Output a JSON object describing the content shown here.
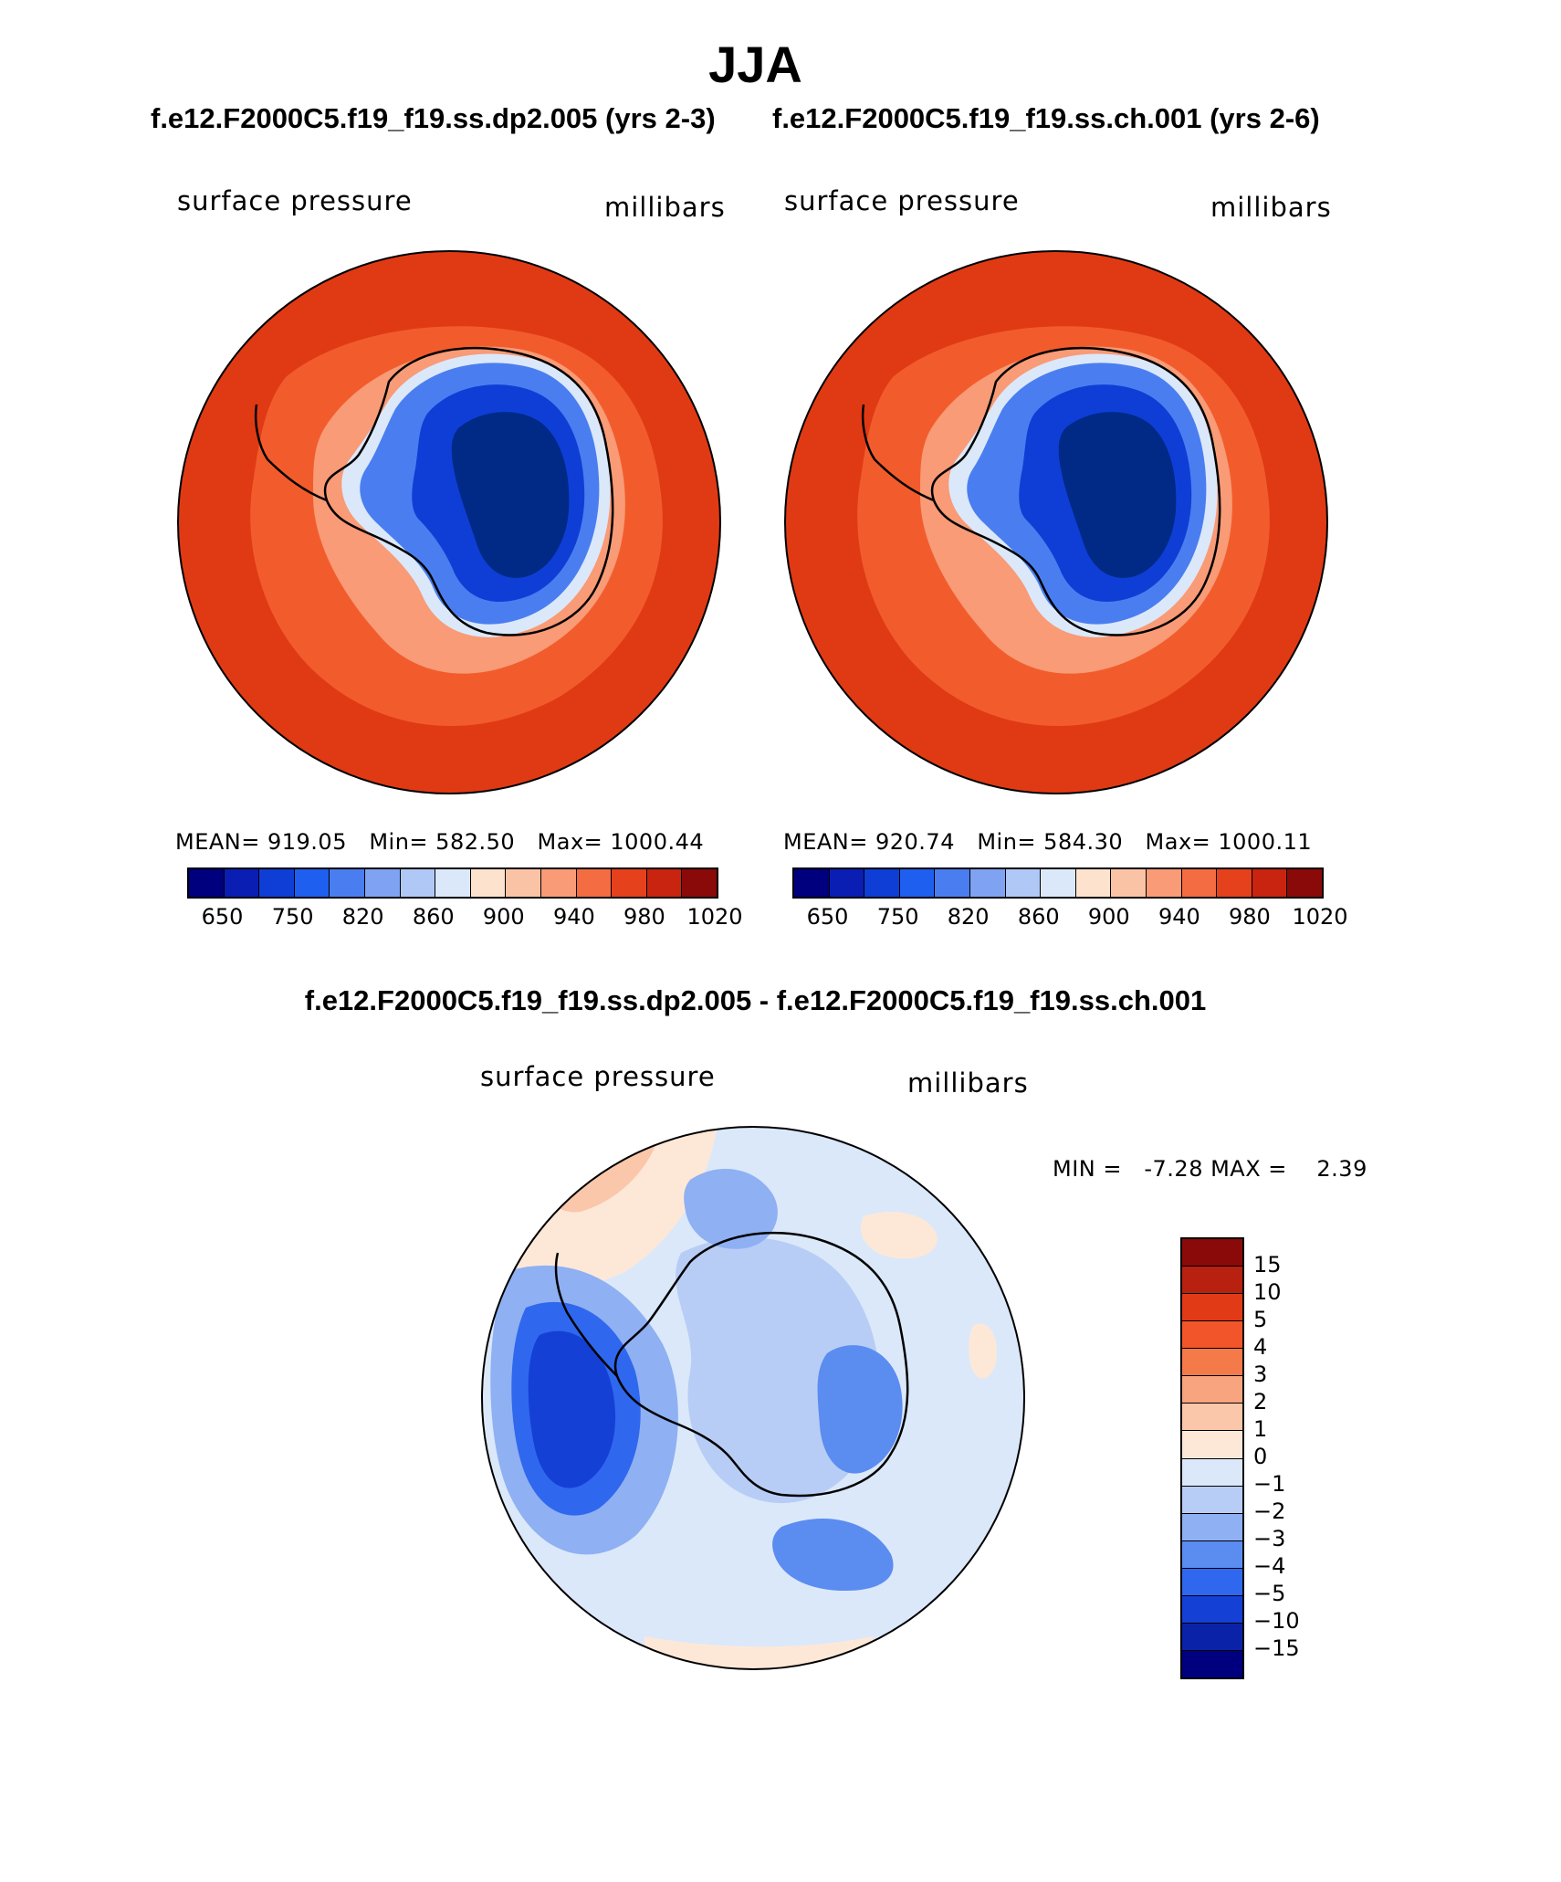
{
  "header": {
    "season": "JJA",
    "case1_title": "f.e12.F2000C5.f19_f19.ss.dp2.005 (yrs 2-3)",
    "case2_title": "f.e12.F2000C5.f19_f19.ss.ch.001 (yrs 2-6)",
    "diff_title": "f.e12.F2000C5.f19_f19.ss.dp2.005 - f.e12.F2000C5.f19_f19.ss.ch.001"
  },
  "panels": [
    {
      "variable": "surface pressure",
      "units": "millibars",
      "stats": "MEAN= 919.05   Min= 582.50   Max= 1000.44"
    },
    {
      "variable": "surface pressure",
      "units": "millibars",
      "stats": "MEAN= 920.74   Min= 584.30   Max= 1000.11"
    }
  ],
  "abs_colorbar": {
    "colors": [
      "#00007f",
      "#0a1eb4",
      "#0f3ed6",
      "#1f5ff0",
      "#4a7ef0",
      "#7fa3f2",
      "#b0c8f5",
      "#dbe8fa",
      "#fde3ce",
      "#fbc3a5",
      "#f89b76",
      "#f46c42",
      "#e5411c",
      "#c82410",
      "#8a0a0a"
    ],
    "tick_labels": [
      "650",
      "750",
      "820",
      "860",
      "900",
      "940",
      "980",
      "1020"
    ]
  },
  "diff_panel": {
    "variable": "surface pressure",
    "units": "millibars",
    "minmax": "MIN =   -7.28 MAX =    2.39"
  },
  "diff_colorbar": {
    "colors": [
      "#8a0a0a",
      "#b8200f",
      "#e13a16",
      "#f2552a",
      "#f57a49",
      "#f8a47e",
      "#fac7ab",
      "#fde8d8",
      "#dbe8fa",
      "#b8cdf5",
      "#8fb0f2",
      "#5b8cf0",
      "#2f68ee",
      "#1440d6",
      "#0a22a8",
      "#00007f"
    ],
    "tick_labels": [
      "15",
      "10",
      "5",
      "4",
      "3",
      "2",
      "1",
      "0",
      "−1",
      "−2",
      "−3",
      "−4",
      "−5",
      "−10",
      "−15"
    ]
  },
  "colors": {
    "ocean_high": "#e03a15",
    "ocean_mid": "#f25c2c",
    "ice_deep": "#002a86",
    "coastline": "#000000"
  }
}
